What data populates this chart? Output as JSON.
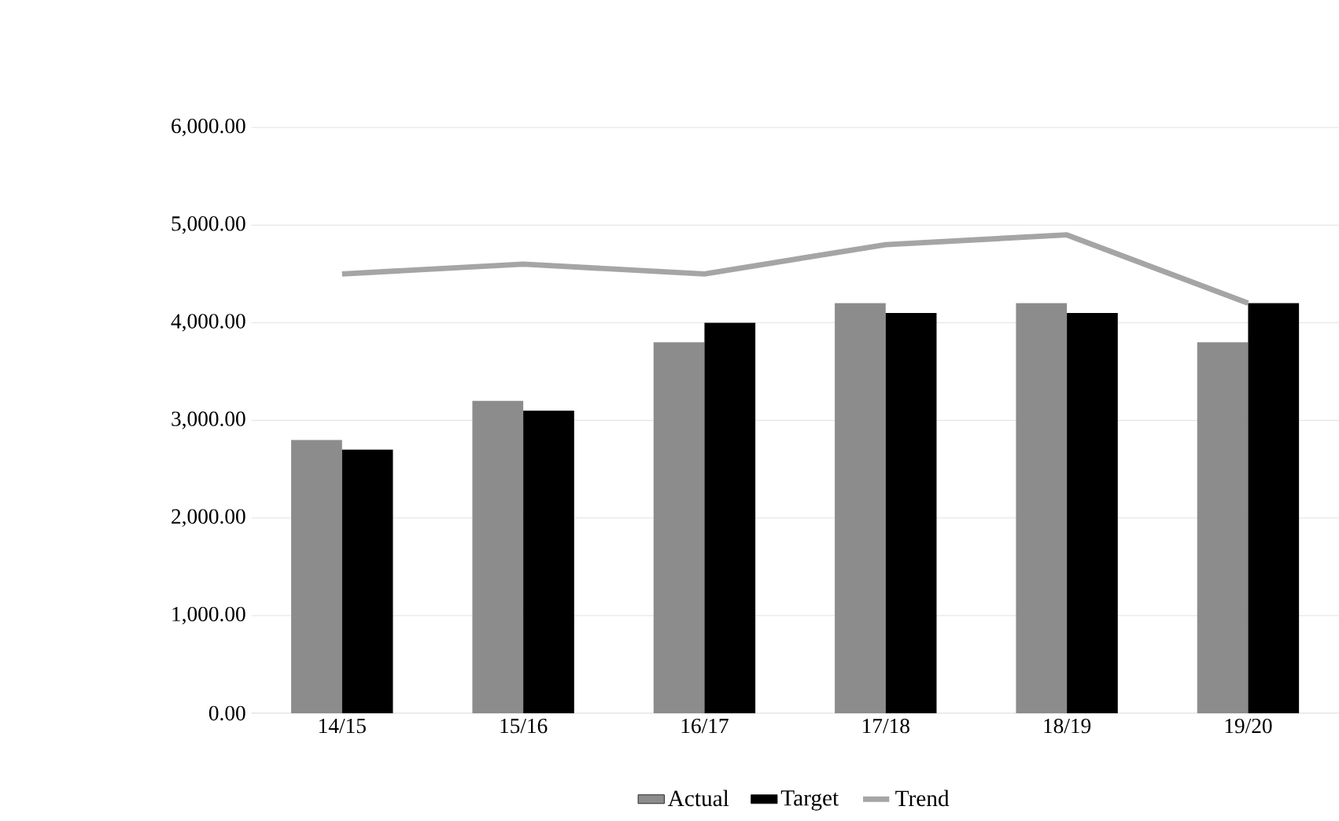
{
  "chart_data": {
    "type": "bar",
    "categories": [
      "14/15",
      "15/16",
      "16/17",
      "17/18",
      "18/19",
      "19/20"
    ],
    "series": [
      {
        "name": "Actual",
        "color": "#8c8c8c",
        "values": [
          2800,
          3200,
          3800,
          4200,
          4200,
          3800
        ]
      },
      {
        "name": "Target",
        "color": "#000000",
        "values": [
          2700,
          3100,
          4000,
          4100,
          4100,
          4200
        ]
      },
      {
        "name": "Trend",
        "type": "line",
        "color": "#a5a5a5",
        "values": [
          4500,
          4600,
          4500,
          4800,
          4900,
          4200
        ]
      }
    ],
    "ylim": [
      0,
      6000
    ],
    "yticks": [
      {
        "value": 0,
        "label": "0.00"
      },
      {
        "value": 1000,
        "label": "1,000.00"
      },
      {
        "value": 2000,
        "label": "2,000.00"
      },
      {
        "value": 3000,
        "label": "3,000.00"
      },
      {
        "value": 4000,
        "label": "4,000.00"
      },
      {
        "value": 5000,
        "label": "5,000.00"
      },
      {
        "value": 6000,
        "label": "6,000.00"
      }
    ],
    "grid": "y",
    "legend": "bottom",
    "marker": "none",
    "line_style": "solid"
  }
}
